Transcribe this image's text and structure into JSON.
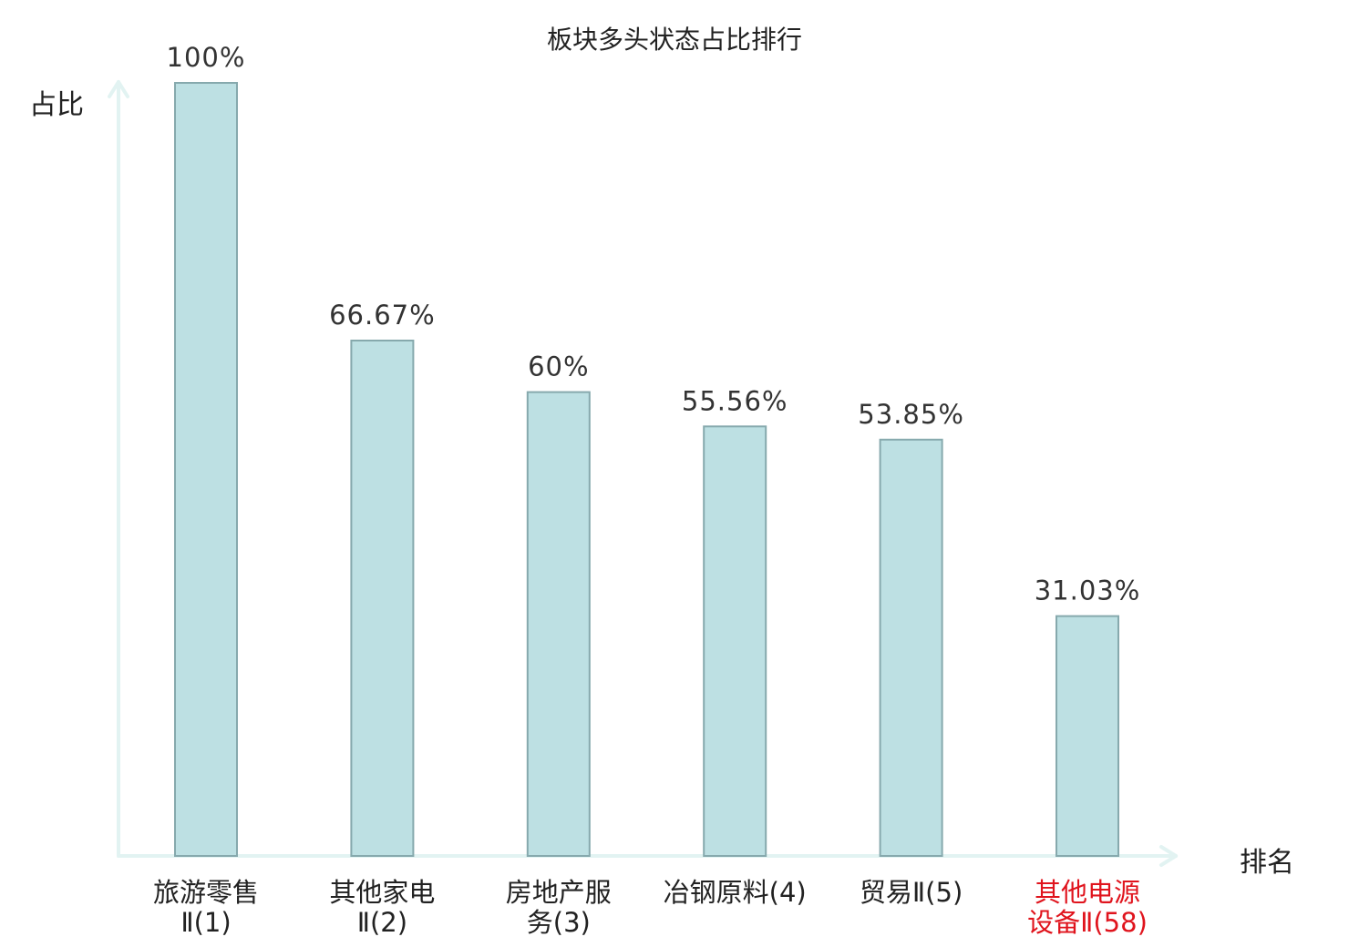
{
  "chart_data": {
    "type": "bar",
    "title": "板块多头状态占比排行",
    "xlabel": "排名",
    "ylabel": "占比",
    "categories": [
      [
        "旅游零售",
        "Ⅱ(1)"
      ],
      [
        "其他家电",
        "Ⅱ(2)"
      ],
      [
        "房地产服",
        "务(3)"
      ],
      [
        "冶钢原料(4)"
      ],
      [
        "贸易Ⅱ(5)"
      ],
      [
        "其他电源",
        "设备Ⅱ(58)"
      ]
    ],
    "values": [
      100,
      66.67,
      60,
      55.56,
      53.85,
      31.03
    ],
    "value_labels": [
      "100%",
      "66.67%",
      "60%",
      "55.56%",
      "53.85%",
      "31.03%"
    ],
    "ylim": [
      0,
      100
    ],
    "grid": false,
    "colors": {
      "bar_fill": "#bde0e3",
      "bar_stroke": "#86a9ad",
      "axis": "#e2f3f2",
      "value_label": "#333333",
      "category_label": "#222222",
      "highlight": "#e0141d"
    },
    "highlight_index": 5
  }
}
